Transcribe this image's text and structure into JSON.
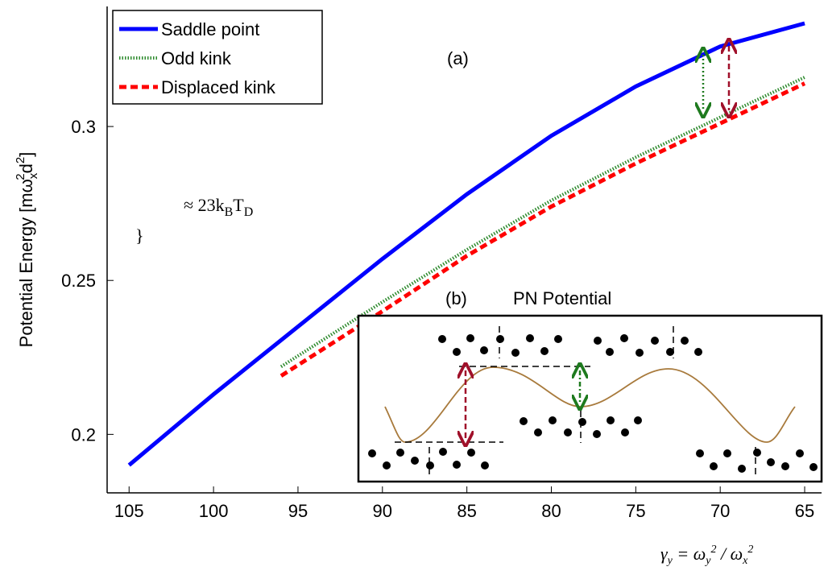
{
  "chart_data": {
    "type": "line",
    "ylabel_parts": [
      "Potential Energy [mω",
      "x",
      "2",
      "d",
      "2",
      "]"
    ],
    "xlabel_parts": [
      "γ",
      "y",
      " = ω",
      "y",
      "2",
      " / ω",
      "x",
      "2"
    ],
    "annotations": {
      "a": "(a)",
      "b": "(b)",
      "inset_title": "PN Potential",
      "brace_parts": [
        "≈ 23k",
        "B",
        "T",
        "D"
      ]
    },
    "xlim": [
      106.3,
      64
    ],
    "ylim": [
      0.181,
      0.339
    ],
    "xticks": [
      105,
      100,
      95,
      90,
      85,
      80,
      75,
      70,
      65
    ],
    "yticks": [
      0.2,
      0.25,
      0.3
    ],
    "series": [
      {
        "name": "Saddle point",
        "color": "#0000ff",
        "style": "solid",
        "x": [
          105,
          100,
          95,
          90,
          85,
          80,
          75,
          70,
          65
        ],
        "values": [
          0.19,
          0.213,
          0.235,
          0.257,
          0.278,
          0.297,
          0.313,
          0.326,
          0.3335
        ]
      },
      {
        "name": "Odd kink",
        "color": "#2e8b2e",
        "style": "dotted",
        "x": [
          96,
          90,
          85,
          80,
          75,
          70,
          65
        ],
        "values": [
          0.222,
          0.243,
          0.26,
          0.276,
          0.29,
          0.303,
          0.316
        ]
      },
      {
        "name": "Displaced kink",
        "color": "#ff0000",
        "style": "dashed",
        "x": [
          96,
          90,
          85,
          80,
          75,
          70,
          65
        ],
        "values": [
          0.219,
          0.24,
          0.258,
          0.274,
          0.288,
          0.301,
          0.314
        ]
      }
    ]
  }
}
